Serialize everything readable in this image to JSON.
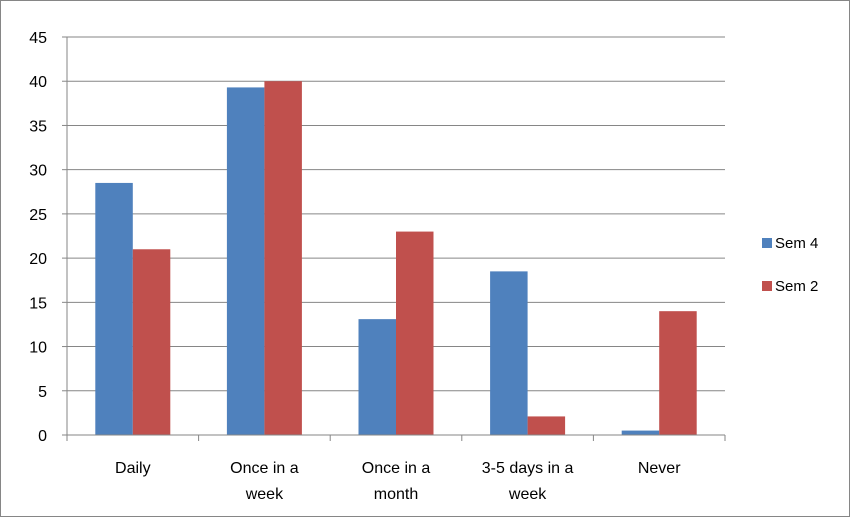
{
  "chart_data": {
    "type": "bar",
    "categories": [
      [
        "Daily"
      ],
      [
        "Once in a",
        "week"
      ],
      [
        "Once in a",
        "month"
      ],
      [
        "3-5 days in a",
        "week"
      ],
      [
        "Never"
      ]
    ],
    "series": [
      {
        "name": "Sem 4",
        "color": "#4F81BD",
        "values": [
          28.5,
          39.3,
          13.1,
          18.5,
          0.5
        ]
      },
      {
        "name": "Sem 2",
        "color": "#C0504D",
        "values": [
          21.0,
          40.0,
          23.0,
          2.1,
          14.0
        ]
      }
    ],
    "yticks": [
      "0",
      "5",
      "10",
      "15",
      "20",
      "25",
      "30",
      "35",
      "40",
      "45"
    ],
    "ylim": [
      0,
      45
    ],
    "grid": true,
    "legend_position": "right",
    "title": "",
    "xlabel": "",
    "ylabel": ""
  }
}
